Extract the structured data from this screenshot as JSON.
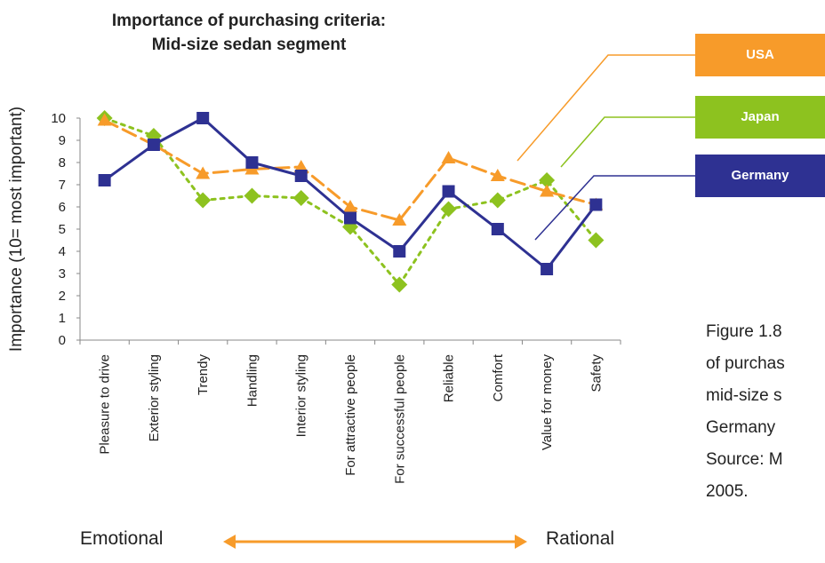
{
  "title_line1": "Importance of purchasing criteria:",
  "title_line2": "Mid-size sedan segment",
  "chart_data": {
    "type": "line",
    "title": "Importance of purchasing criteria: Mid-size sedan segment",
    "ylabel": "Importance (10= most important)",
    "ylim": [
      0,
      10
    ],
    "yticks": [
      "0",
      "1",
      "2",
      "3",
      "4",
      "5",
      "6",
      "7",
      "8",
      "9",
      "10"
    ],
    "categories": [
      "Pleasure to drive",
      "Exterior styling",
      "Trendy",
      "Handling",
      "Interior styling",
      "For attractive people",
      "For successful people",
      "Reliable",
      "Comfort",
      "Value for money",
      "Safety"
    ],
    "series": [
      {
        "name": "USA",
        "color": "#F79B2A",
        "marker": "triangle",
        "style": "long-dash",
        "values": [
          9.9,
          8.8,
          7.5,
          7.7,
          7.8,
          6.0,
          5.4,
          8.2,
          7.4,
          6.7,
          6.1
        ]
      },
      {
        "name": "Japan",
        "color": "#8DC21F",
        "marker": "diamond",
        "style": "dotted",
        "values": [
          10.0,
          9.2,
          6.3,
          6.5,
          6.4,
          5.1,
          2.5,
          5.9,
          6.3,
          7.2,
          4.5
        ]
      },
      {
        "name": "Germany",
        "color": "#2E3192",
        "marker": "square",
        "style": "solid",
        "values": [
          7.2,
          8.8,
          10.0,
          8.0,
          7.4,
          5.5,
          4.0,
          6.7,
          5.0,
          3.2,
          6.1
        ]
      }
    ],
    "legend": [
      "USA",
      "Japan",
      "Germany"
    ],
    "legend_position": "right"
  },
  "caption_lines": [
    "Figure 1.8",
    "of purchas",
    "mid-size s",
    "Germany",
    "Source: M",
    "2005."
  ],
  "axis_labels": {
    "left": "Emotional",
    "right": "Rational"
  },
  "arrow_color": "#F79B2A"
}
